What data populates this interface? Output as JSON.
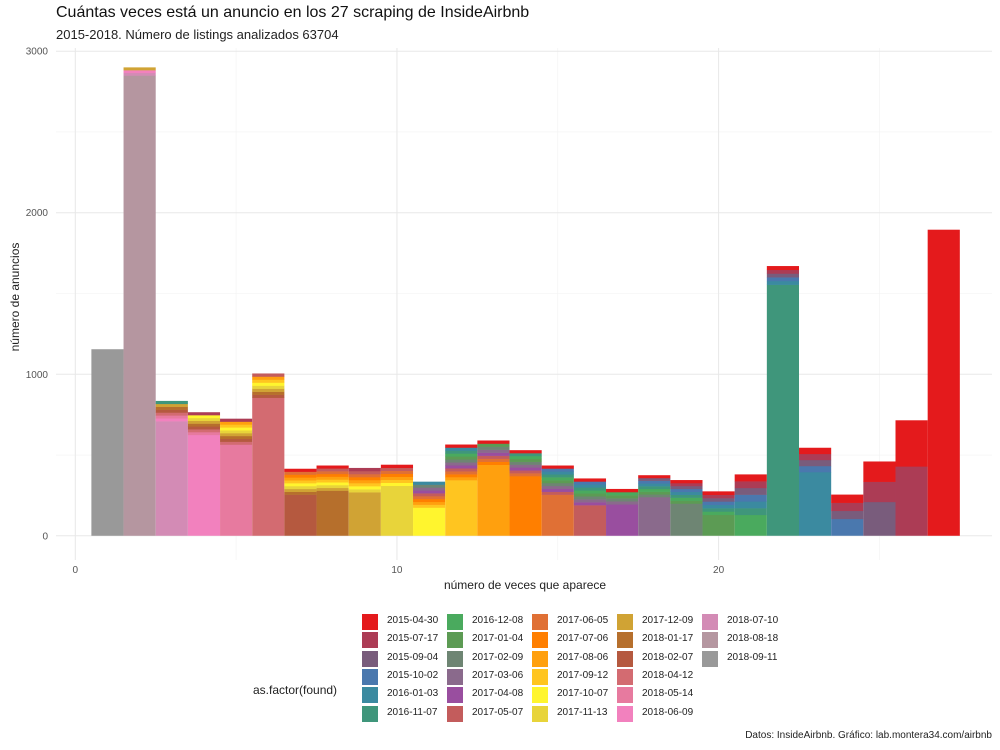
{
  "header": {
    "title": "Cuántas veces está un anuncio en los 27 scraping de InsideAirbnb",
    "subtitle": "2015-2018. Número de listings analizados 63704"
  },
  "caption": "Datos: InsideAirbnb. Gráfico: lab.montera34.com/airbnb",
  "chart_data": {
    "type": "bar",
    "stacked": true,
    "xlabel": "número de veces que aparece",
    "ylabel": "número de anuncios",
    "xlim": [
      -0.6,
      28.5
    ],
    "ylim": [
      -150,
      3020
    ],
    "x_ticks": [
      0,
      10,
      20
    ],
    "y_ticks": [
      0,
      1000,
      2000,
      3000
    ],
    "grid": true,
    "legend": {
      "title": "as.factor(found)",
      "position": "bottom"
    },
    "series": [
      {
        "name": "2015-04-30",
        "color": "#E41A1C"
      },
      {
        "name": "2015-07-17",
        "color": "#AC3C55"
      },
      {
        "name": "2015-09-04",
        "color": "#795C7C"
      },
      {
        "name": "2015-10-02",
        "color": "#4A78AE"
      },
      {
        "name": "2016-01-03",
        "color": "#3B8AA0"
      },
      {
        "name": "2016-11-07",
        "color": "#3F967B"
      },
      {
        "name": "2016-12-08",
        "color": "#4AAA5E"
      },
      {
        "name": "2017-01-04",
        "color": "#5C9B54"
      },
      {
        "name": "2017-02-09",
        "color": "#6E8573"
      },
      {
        "name": "2017-03-06",
        "color": "#8A6A8C"
      },
      {
        "name": "2017-04-08",
        "color": "#994E9F"
      },
      {
        "name": "2017-05-07",
        "color": "#C35C5C"
      },
      {
        "name": "2017-06-05",
        "color": "#E07035"
      },
      {
        "name": "2017-07-06",
        "color": "#FF7F00"
      },
      {
        "name": "2017-08-06",
        "color": "#FFA00E"
      },
      {
        "name": "2017-09-12",
        "color": "#FFC520"
      },
      {
        "name": "2017-10-07",
        "color": "#FFF52E"
      },
      {
        "name": "2017-11-13",
        "color": "#E8D43A"
      },
      {
        "name": "2017-12-09",
        "color": "#D0A334"
      },
      {
        "name": "2018-01-17",
        "color": "#B66F2C"
      },
      {
        "name": "2018-02-07",
        "color": "#B5593F"
      },
      {
        "name": "2018-04-12",
        "color": "#D36B71"
      },
      {
        "name": "2018-05-14",
        "color": "#E77A9F"
      },
      {
        "name": "2018-06-09",
        "color": "#F281BE"
      },
      {
        "name": "2018-07-10",
        "color": "#D38BB5"
      },
      {
        "name": "2018-08-18",
        "color": "#B596A0"
      },
      {
        "name": "2018-09-11",
        "color": "#999999"
      }
    ],
    "bins": [
      {
        "x": 1,
        "total": 1155,
        "base": 1155,
        "base_color": "#999999",
        "top_color": "#999999"
      },
      {
        "x": 2,
        "total": 2900,
        "base": 2850,
        "base_color": "#B596A0",
        "top_color": "#D0A334"
      },
      {
        "x": 3,
        "total": 835,
        "base": 710,
        "base_color": "#D38BB5",
        "top_color": "#3F967B"
      },
      {
        "x": 4,
        "total": 765,
        "base": 625,
        "base_color": "#F281BE",
        "top_color": "#AC3C55"
      },
      {
        "x": 5,
        "total": 725,
        "base": 565,
        "base_color": "#E77A9F",
        "top_color": "#AC3C55"
      },
      {
        "x": 6,
        "total": 1005,
        "base": 855,
        "base_color": "#D36B71",
        "top_color": "#C35C5C"
      },
      {
        "x": 7,
        "total": 415,
        "base": 255,
        "base_color": "#B5593F",
        "top_color": "#E41A1C"
      },
      {
        "x": 8,
        "total": 435,
        "base": 280,
        "base_color": "#B66F2C",
        "top_color": "#E41A1C"
      },
      {
        "x": 9,
        "total": 420,
        "base": 270,
        "base_color": "#D0A334",
        "top_color": "#AC3C55"
      },
      {
        "x": 10,
        "total": 440,
        "base": 310,
        "base_color": "#E8D43A",
        "top_color": "#E41A1C"
      },
      {
        "x": 11,
        "total": 335,
        "base": 175,
        "base_color": "#FFF52E",
        "top_color": "#3B8AA0"
      },
      {
        "x": 12,
        "total": 565,
        "base": 345,
        "base_color": "#FFC520",
        "top_color": "#E41A1C"
      },
      {
        "x": 13,
        "total": 590,
        "base": 440,
        "base_color": "#FFA00E",
        "top_color": "#E41A1C"
      },
      {
        "x": 14,
        "total": 530,
        "base": 370,
        "base_color": "#FF7F00",
        "top_color": "#E41A1C"
      },
      {
        "x": 15,
        "total": 435,
        "base": 255,
        "base_color": "#E07035",
        "top_color": "#E41A1C"
      },
      {
        "x": 16,
        "total": 355,
        "base": 190,
        "base_color": "#C35C5C",
        "top_color": "#E41A1C"
      },
      {
        "x": 17,
        "total": 290,
        "base": 195,
        "base_color": "#994E9F",
        "top_color": "#E41A1C"
      },
      {
        "x": 18,
        "total": 375,
        "base": 240,
        "base_color": "#8A6A8C",
        "top_color": "#E41A1C"
      },
      {
        "x": 19,
        "total": 345,
        "base": 200,
        "base_color": "#6E8573",
        "top_color": "#E41A1C"
      },
      {
        "x": 20,
        "total": 275,
        "base": 130,
        "base_color": "#5C9B54",
        "top_color": "#E41A1C"
      },
      {
        "x": 21,
        "total": 380,
        "base": 130,
        "base_color": "#4AAA5E",
        "top_color": "#E41A1C"
      },
      {
        "x": 22,
        "total": 1670,
        "base": 1555,
        "base_color": "#3F967B",
        "top_color": "#E41A1C"
      },
      {
        "x": 23,
        "total": 545,
        "base": 395,
        "base_color": "#3B8AA0",
        "top_color": "#E41A1C"
      },
      {
        "x": 24,
        "total": 255,
        "base": 105,
        "base_color": "#4A78AE",
        "top_color": "#E41A1C"
      },
      {
        "x": 25,
        "total": 460,
        "base": 210,
        "base_color": "#795C7C",
        "top_color": "#E41A1C"
      },
      {
        "x": 26,
        "total": 715,
        "base": 430,
        "base_color": "#AC3C55",
        "top_color": "#E41A1C"
      },
      {
        "x": 27,
        "total": 1895,
        "base": 1895,
        "base_color": "#E41A1C",
        "top_color": "#E41A1C"
      }
    ]
  }
}
